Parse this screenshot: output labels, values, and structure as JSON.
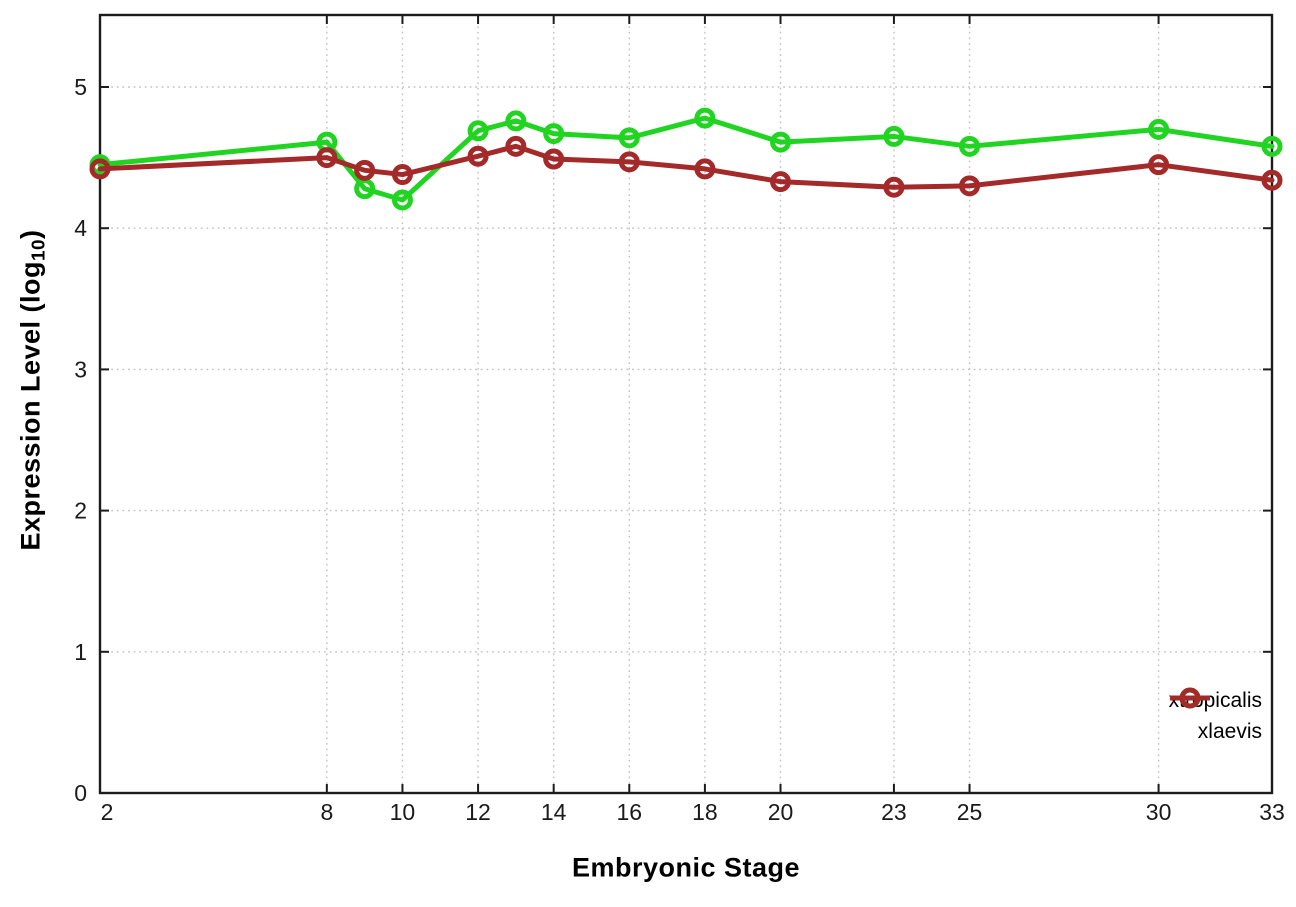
{
  "chart_data": {
    "type": "line",
    "title": "",
    "xlabel": "Embryonic Stage",
    "ylabel": "Expression Level (log10)",
    "ylabel_parts": {
      "pre": "Expression Level (log",
      "sub": "10",
      "post": ")"
    },
    "x": [
      2,
      8,
      9,
      10,
      12,
      13,
      14,
      16,
      18,
      20,
      23,
      25,
      30,
      33
    ],
    "xticks": [
      2,
      8,
      10,
      12,
      14,
      16,
      18,
      20,
      23,
      25,
      30,
      33
    ],
    "yticks": [
      0,
      1,
      2,
      3,
      4,
      5
    ],
    "xlim": [
      2,
      33
    ],
    "ylim": [
      0,
      5.51
    ],
    "grid": true,
    "legend_position": "inside-bottom-right",
    "marker_style": "open-circle",
    "series": [
      {
        "name": "xtropicalis",
        "color": "#22d422",
        "values": [
          4.45,
          4.61,
          4.28,
          4.2,
          4.69,
          4.76,
          4.67,
          4.64,
          4.78,
          4.61,
          4.65,
          4.58,
          4.7,
          4.58
        ]
      },
      {
        "name": "xlaevis",
        "color": "#a42a2a",
        "values": [
          4.42,
          4.5,
          4.41,
          4.38,
          4.51,
          4.58,
          4.49,
          4.47,
          4.42,
          4.33,
          4.29,
          4.3,
          4.45,
          4.34
        ]
      }
    ]
  },
  "colors": {
    "background": "#ffffff",
    "border": "#1c1c1c",
    "grid": "#c4c4c4",
    "tick_text": "#1a1a1a"
  }
}
